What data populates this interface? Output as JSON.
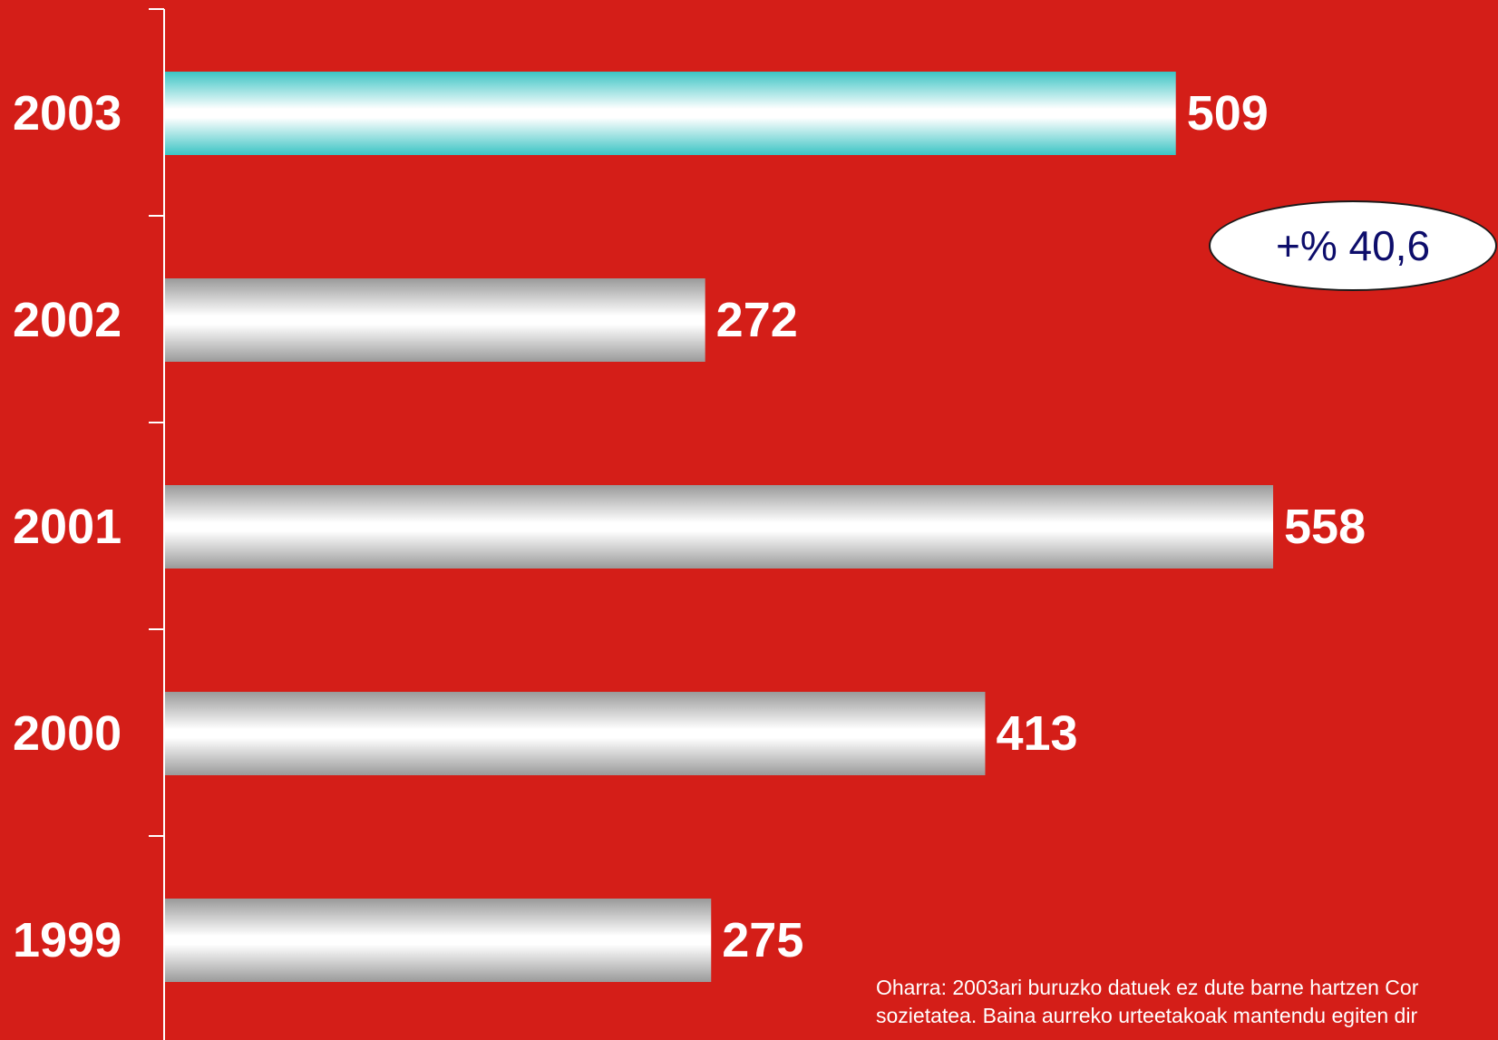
{
  "chart_data": {
    "type": "bar",
    "orientation": "horizontal",
    "categories": [
      "2003",
      "2002",
      "2001",
      "2000",
      "1999"
    ],
    "values": [
      509,
      272,
      558,
      413,
      275
    ],
    "data_labels": [
      "509",
      "272",
      "558",
      "413",
      "275"
    ],
    "highlight_category": "2003",
    "colors": {
      "background": "#d41e18",
      "bar_edge": "#9a9a9a",
      "bar_center": "#ffffff",
      "highlight_edge": "#3cc4c4",
      "axis": "#ffffff"
    },
    "xlim": [
      0,
      600
    ],
    "grid": false,
    "annotations": [
      {
        "text": "+% 40,6",
        "shape": "ellipse",
        "text_color": "#0d0d6b"
      }
    ],
    "footnote": "Oharra: 2003ari buruzko datuek ez dute barne hartzen Cor sozietatea. Baina aurreko urteetakoak mantendu egiten dir"
  }
}
